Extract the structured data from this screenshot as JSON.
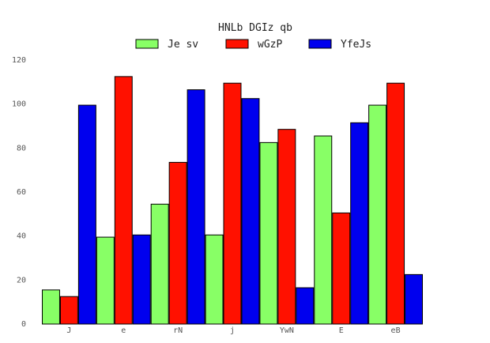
{
  "chart_data": {
    "type": "bar",
    "title": "HNLb DGIz qb",
    "xlabel": "",
    "ylabel": "",
    "categories": [
      "J",
      "e",
      "rN",
      "j",
      "YwN",
      "E",
      "eB"
    ],
    "series": [
      {
        "name": "Je sv",
        "color": "#88ff66",
        "values": [
          15.5,
          39.5,
          54.5,
          40.5,
          82.5,
          85.5,
          99.5
        ]
      },
      {
        "name": "wGzP",
        "color": "#ff1100",
        "values": [
          12.5,
          112.5,
          73.5,
          109.5,
          88.5,
          50.5,
          109.5
        ]
      },
      {
        "name": "YfeJs",
        "color": "#0000ee",
        "values": [
          99.5,
          40.5,
          106.5,
          102.5,
          16.5,
          91.5,
          22.5
        ]
      }
    ],
    "ylim": [
      0,
      120
    ],
    "yticks": [
      0,
      20,
      40,
      60,
      80,
      100,
      120
    ],
    "grid": false,
    "legend_position": "top-center"
  }
}
